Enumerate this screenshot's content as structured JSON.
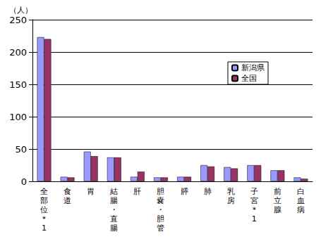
{
  "chart_data": {
    "type": "bar",
    "y_label": "（人）",
    "categories": [
      "全部位＊1",
      "食道",
      "胃",
      "結腸・直腸",
      "肝",
      "胆嚢・胆管",
      "膵",
      "肺",
      "乳房",
      "子宮＊1",
      "前立腺",
      "白血病"
    ],
    "series": [
      {
        "name": "新潟県",
        "color": "#9999ff",
        "values": [
          223,
          7,
          46,
          37,
          7,
          6,
          7,
          25,
          22,
          25,
          17,
          6
        ]
      },
      {
        "name": "全国",
        "color": "#993366",
        "values": [
          220,
          6,
          39,
          37,
          15,
          6,
          7,
          23,
          20,
          25,
          17,
          4
        ]
      }
    ],
    "ylim": [
      0,
      250
    ],
    "yticks": [
      0,
      50,
      100,
      150,
      200,
      250
    ],
    "grid": true,
    "legend": "upper right"
  }
}
